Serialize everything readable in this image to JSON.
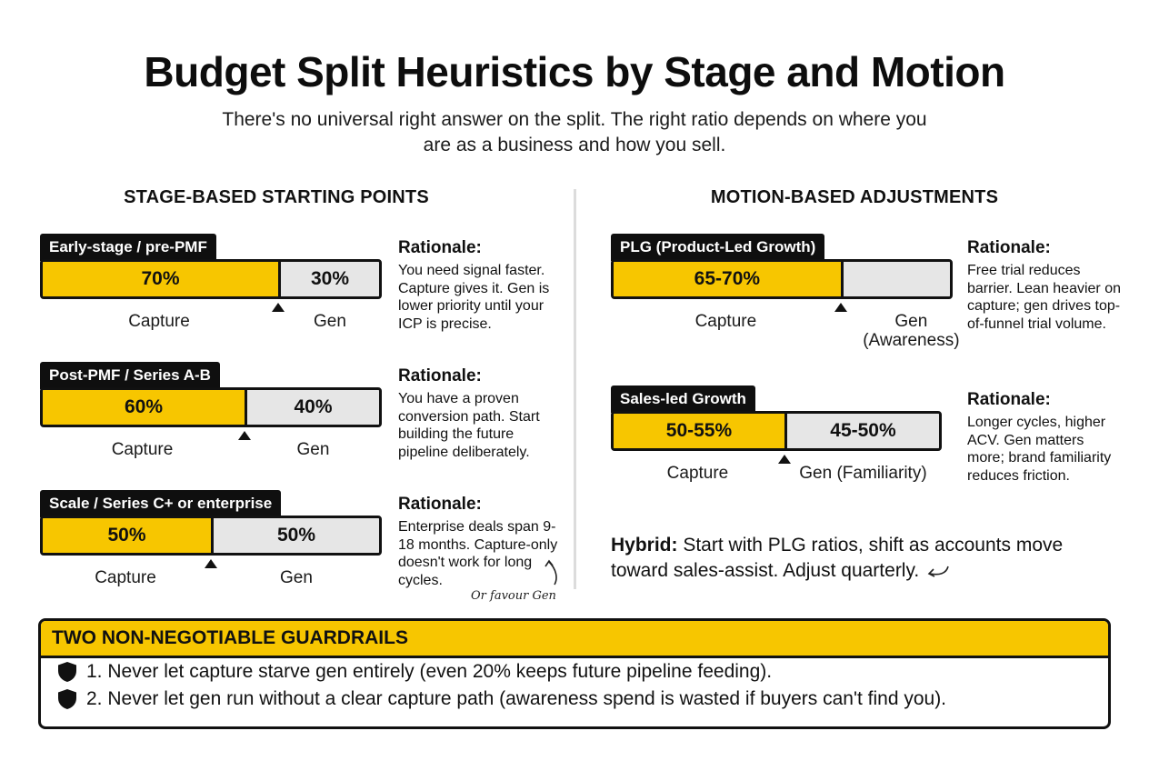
{
  "title": "Budget Split Heuristics by Stage and Motion",
  "subtitle": "There's no universal right answer on the split. The right ratio depends on where you are as a business and how you sell.",
  "stage": {
    "heading": "STAGE-BASED STARTING POINTS",
    "items": [
      {
        "tag": "Early-stage / pre-PMF",
        "capture_pct": 70,
        "a": "70%",
        "b": "30%",
        "label_a": "Capture",
        "label_b": "Gen",
        "rationale_h": "Rationale:",
        "rationale": "You need signal faster. Capture gives it. Gen is lower priority until your ICP is precise."
      },
      {
        "tag": "Post-PMF / Series A-B",
        "capture_pct": 60,
        "a": "60%",
        "b": "40%",
        "label_a": "Capture",
        "label_b": "Gen",
        "rationale_h": "Rationale:",
        "rationale": "You have a proven conversion path. Start building the future pipeline deliberately."
      },
      {
        "tag": "Scale / Series C+ or enterprise",
        "capture_pct": 50,
        "a": "50%",
        "b": "50%",
        "label_a": "Capture",
        "label_b": "Gen",
        "rationale_h": "Rationale:",
        "rationale": "Enterprise deals span 9-18 months. Capture-only doesn't work for long cycles."
      }
    ],
    "note": "Or favour Gen"
  },
  "motion": {
    "heading": "MOTION-BASED ADJUSTMENTS",
    "items": [
      {
        "tag": "PLG (Product-Led Growth)",
        "capture_pct": 67.5,
        "a": "65-70%",
        "b": "",
        "label_a": "Capture",
        "label_b": "Gen (Awareness)",
        "rationale_h": "Rationale:",
        "rationale": "Free trial reduces barrier. Lean heavier on capture; gen drives top-of-funnel trial volume."
      },
      {
        "tag": "Sales-led Growth",
        "capture_pct": 52.5,
        "a": "50-55%",
        "b": "45-50%",
        "label_a": "Capture",
        "label_b": "Gen (Familiarity)",
        "rationale_h": "Rationale:",
        "rationale": "Longer cycles, higher ACV. Gen matters more; brand familiarity reduces friction."
      }
    ],
    "hybrid_label": "Hybrid:",
    "hybrid_text": "Start with PLG ratios, shift as accounts move toward sales-assist. Adjust quarterly."
  },
  "guardrails": {
    "heading": "TWO NON-NEGOTIABLE GUARDRAILS",
    "items": [
      "1. Never let capture starve gen entirely (even 20% keeps future pipeline feeding).",
      "2. Never let gen run without a clear capture path (awareness spend is wasted if buyers can't find you)."
    ]
  },
  "colors": {
    "capture": "#f7c600",
    "gen": "#e6e6e6",
    "ink": "#111111"
  }
}
